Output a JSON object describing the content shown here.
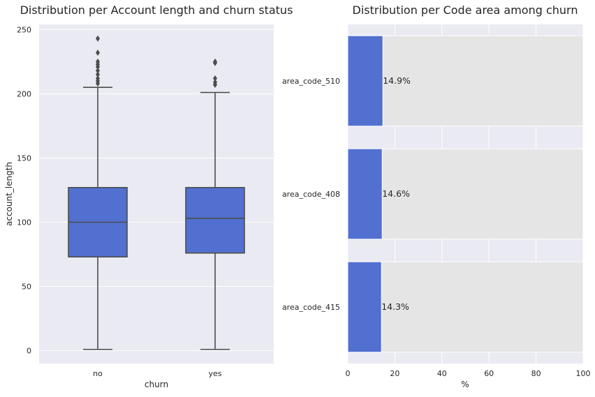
{
  "chart_data": [
    {
      "type": "box",
      "title": "Distribution per Account length and churn status",
      "xlabel": "churn",
      "ylabel": "account_length",
      "categories": [
        "no",
        "yes"
      ],
      "ylim": [
        -10,
        254
      ],
      "yticks": [
        0,
        50,
        100,
        150,
        200,
        250
      ],
      "grid": true,
      "color": "#5170d0",
      "boxes": [
        {
          "category": "no",
          "whisker_low": 1,
          "q1": 73,
          "median": 100,
          "q3": 127,
          "whisker_high": 205,
          "outliers": [
            208,
            210,
            212,
            215,
            218,
            221,
            223,
            225,
            232,
            243
          ]
        },
        {
          "category": "yes",
          "whisker_low": 1,
          "q1": 76,
          "median": 103,
          "q3": 127,
          "whisker_high": 201,
          "outliers": [
            207,
            209,
            212,
            224,
            225
          ]
        }
      ]
    },
    {
      "type": "bar",
      "orientation": "horizontal",
      "title": "Distribution per Code area among churn",
      "xlabel": "%",
      "ylabel": "",
      "categories": [
        "area_code_510",
        "area_code_408",
        "area_code_415"
      ],
      "values": [
        14.9,
        14.6,
        14.3
      ],
      "data_labels": [
        "14.9%",
        "14.6%",
        "14.3%"
      ],
      "xlim": [
        0,
        100
      ],
      "xticks": [
        0,
        20,
        40,
        60,
        80,
        100
      ],
      "grid": true,
      "color": "#5170d0",
      "background_bar_color": "#e5e5e5"
    }
  ]
}
